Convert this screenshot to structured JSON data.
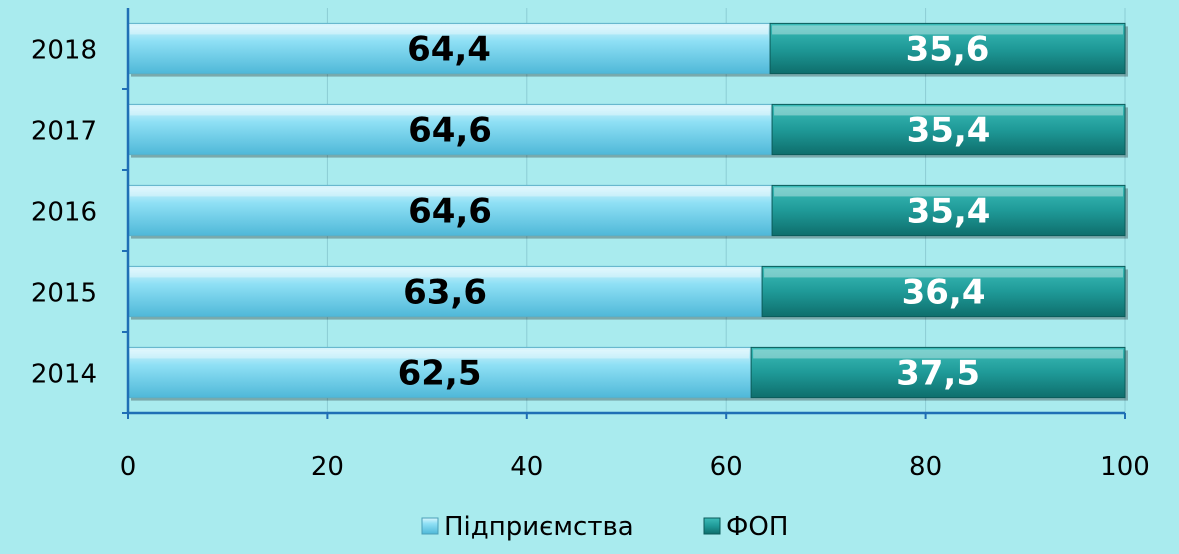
{
  "chart_data": {
    "type": "bar",
    "orientation": "horizontal",
    "stacked": true,
    "categories": [
      "2018",
      "2017",
      "2016",
      "2015",
      "2014"
    ],
    "series": [
      {
        "name": "Підприємства",
        "values": [
          64.4,
          64.6,
          64.6,
          63.6,
          62.5
        ],
        "labels": [
          "64,4",
          "64,6",
          "64,6",
          "63,6",
          "62,5"
        ],
        "color": "#7fd8f0",
        "label_color": "#000000"
      },
      {
        "name": "ФОП",
        "values": [
          35.6,
          35.4,
          35.4,
          36.4,
          37.5
        ],
        "labels": [
          "35,6",
          "35,4",
          "35,4",
          "36,4",
          "37,5"
        ],
        "color": "#1f9a98",
        "label_color": "#ffffff"
      }
    ],
    "xlim": [
      0,
      100
    ],
    "xticks": [
      "0",
      "20",
      "40",
      "60",
      "80",
      "100"
    ],
    "grid": true,
    "legend_position": "bottom",
    "axis_color": "#1f6fb5",
    "background": "#a9ebee"
  }
}
